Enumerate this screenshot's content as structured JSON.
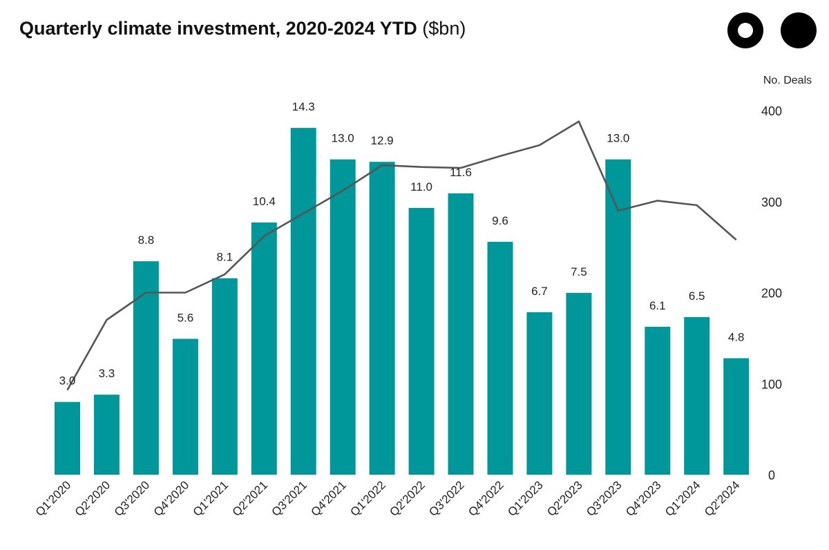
{
  "chart_data": {
    "type": "bar",
    "title": "Quarterly climate investment, 2020-2024 YTD",
    "title_unit": "($bn)",
    "categories": [
      "Q1'2020",
      "Q2'2020",
      "Q3'2020",
      "Q4'2020",
      "Q1'2021",
      "Q2'2021",
      "Q3'2021",
      "Q4'2021",
      "Q1'2022",
      "Q2'2022",
      "Q3'2022",
      "Q4'2022",
      "Q1'2023",
      "Q2'2023",
      "Q3'2023",
      "Q4'2023",
      "Q1'2024",
      "Q2'2024"
    ],
    "series": [
      {
        "name": "Investment ($bn)",
        "type": "bar",
        "color": "#00979b",
        "values": [
          3.0,
          3.3,
          8.8,
          5.6,
          8.1,
          10.4,
          14.3,
          13.0,
          12.9,
          11.0,
          11.6,
          9.6,
          6.7,
          7.5,
          13.0,
          6.1,
          6.5,
          4.8
        ],
        "labels": [
          "3.0",
          "3.3",
          "8.8",
          "5.6",
          "8.1",
          "10.4",
          "14.3",
          "13.0",
          "12.9",
          "11.0",
          "11.6",
          "9.6",
          "6.7",
          "7.5",
          "13.0",
          "6.1",
          "6.5",
          "4.8"
        ]
      },
      {
        "name": "No. Deals",
        "type": "line",
        "axis": "right",
        "color": "#555555",
        "values": [
          93,
          170,
          200,
          200,
          220,
          262,
          287,
          312,
          340,
          338,
          337,
          350,
          362,
          388,
          290,
          301,
          296,
          258
        ]
      }
    ],
    "bar_axis_range": [
      0,
      15
    ],
    "right_axis": {
      "label": "No. Deals",
      "range": [
        0,
        400
      ],
      "ticks": [
        "0",
        "100",
        "200",
        "300",
        "400"
      ]
    },
    "grid": false,
    "legend": "none"
  },
  "logo": {
    "name": "logo-mark"
  }
}
